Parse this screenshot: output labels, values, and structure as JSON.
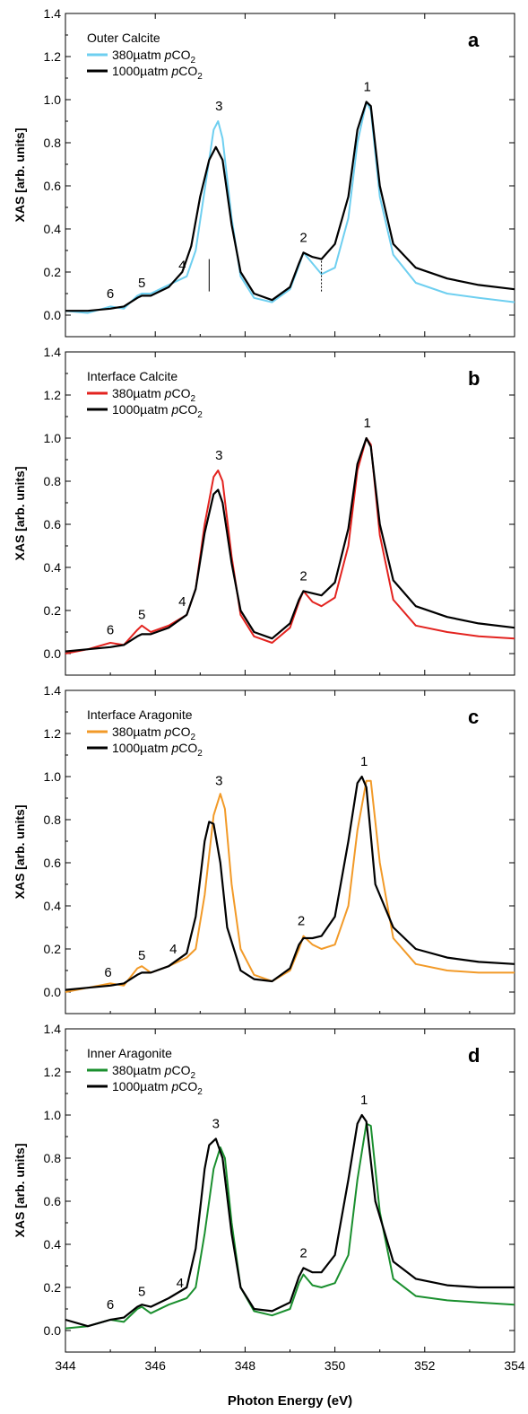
{
  "figure": {
    "xlabel": "Photon Energy (eV)",
    "ylabel": "XAS [arb. units]",
    "xticks": [
      "344",
      "346",
      "348",
      "350",
      "352",
      "354"
    ],
    "yticks": [
      "0.0",
      "0.2",
      "0.4",
      "0.6",
      "0.8",
      "1.0",
      "1.2",
      "1.4"
    ]
  },
  "chart_data": [
    {
      "type": "line",
      "panel_letter": "a",
      "legend_title": "Outer Calcite",
      "legend_placement": "top-left",
      "xlabel": "",
      "ylabel": "XAS [arb. units]",
      "xlim": [
        344,
        354
      ],
      "ylim": [
        -0.1,
        1.4
      ],
      "grid": false,
      "series": [
        {
          "name": "380µatm pCO2",
          "color": "#6ecff0",
          "x": [
            344,
            344.5,
            345,
            345.3,
            345.6,
            345.7,
            345.9,
            346.3,
            346.7,
            346.9,
            347.1,
            347.3,
            347.4,
            347.5,
            347.7,
            347.9,
            348.2,
            348.6,
            349,
            349.2,
            349.3,
            349.5,
            349.7,
            350,
            350.3,
            350.5,
            350.7,
            350.8,
            351,
            351.3,
            351.8,
            352.5,
            353.2,
            354
          ],
          "y": [
            0.02,
            0.01,
            0.04,
            0.03,
            0.09,
            0.1,
            0.1,
            0.14,
            0.18,
            0.3,
            0.58,
            0.86,
            0.9,
            0.82,
            0.45,
            0.18,
            0.08,
            0.06,
            0.12,
            0.23,
            0.29,
            0.24,
            0.19,
            0.22,
            0.45,
            0.8,
            0.99,
            0.95,
            0.55,
            0.28,
            0.15,
            0.1,
            0.08,
            0.06
          ]
        },
        {
          "name": "1000µatm pCO2",
          "color": "#000000",
          "x": [
            344,
            344.5,
            345,
            345.3,
            345.6,
            345.7,
            345.9,
            346.3,
            346.6,
            346.8,
            347,
            347.2,
            347.35,
            347.5,
            347.7,
            347.9,
            348.2,
            348.6,
            349,
            349.2,
            349.3,
            349.5,
            349.7,
            350,
            350.3,
            350.5,
            350.7,
            350.8,
            351,
            351.3,
            351.8,
            352.5,
            353.2,
            354
          ],
          "y": [
            0.02,
            0.02,
            0.03,
            0.04,
            0.08,
            0.09,
            0.09,
            0.13,
            0.2,
            0.32,
            0.55,
            0.72,
            0.78,
            0.72,
            0.42,
            0.2,
            0.1,
            0.07,
            0.13,
            0.24,
            0.29,
            0.27,
            0.26,
            0.33,
            0.55,
            0.86,
            0.99,
            0.97,
            0.6,
            0.33,
            0.22,
            0.17,
            0.14,
            0.12
          ]
        }
      ],
      "peak_labels": [
        {
          "label": "1",
          "x": 350.72,
          "y": 1.04
        },
        {
          "label": "2",
          "x": 349.3,
          "y": 0.34
        },
        {
          "label": "3",
          "x": 347.42,
          "y": 0.95
        },
        {
          "label": "4",
          "x": 346.6,
          "y": 0.21
        },
        {
          "label": "5",
          "x": 345.7,
          "y": 0.13
        },
        {
          "label": "6",
          "x": 345,
          "y": 0.08
        }
      ],
      "markers": [
        {
          "type": "solid",
          "x": 347.2,
          "y": [
            0.11,
            0.26
          ]
        },
        {
          "type": "dotted",
          "x": 349.7,
          "y": [
            0.11,
            0.26
          ]
        }
      ]
    },
    {
      "type": "line",
      "panel_letter": "b",
      "legend_title": "Interface Calcite",
      "legend_placement": "top-left",
      "xlabel": "",
      "ylabel": "XAS [arb. units]",
      "xlim": [
        344,
        354
      ],
      "ylim": [
        -0.1,
        1.4
      ],
      "grid": false,
      "series": [
        {
          "name": "380µatm pCO2",
          "color": "#e3231f",
          "x": [
            344,
            344.5,
            345,
            345.3,
            345.6,
            345.7,
            345.9,
            346.3,
            346.7,
            346.9,
            347.1,
            347.3,
            347.4,
            347.5,
            347.7,
            347.9,
            348.2,
            348.6,
            349,
            349.2,
            349.3,
            349.5,
            349.7,
            350,
            350.3,
            350.5,
            350.7,
            350.8,
            351,
            351.3,
            351.8,
            352.5,
            353.2,
            354
          ],
          "y": [
            0.0,
            0.02,
            0.05,
            0.04,
            0.11,
            0.13,
            0.1,
            0.13,
            0.18,
            0.3,
            0.6,
            0.82,
            0.85,
            0.8,
            0.45,
            0.18,
            0.08,
            0.05,
            0.12,
            0.24,
            0.29,
            0.24,
            0.22,
            0.26,
            0.5,
            0.85,
            1.0,
            0.97,
            0.55,
            0.25,
            0.13,
            0.1,
            0.08,
            0.07
          ]
        },
        {
          "name": "1000µatm pCO2",
          "color": "#000000",
          "x": [
            344,
            344.5,
            345,
            345.3,
            345.6,
            345.7,
            345.9,
            346.3,
            346.7,
            346.9,
            347.1,
            347.3,
            347.4,
            347.5,
            347.7,
            347.9,
            348.2,
            348.6,
            349,
            349.2,
            349.3,
            349.5,
            349.7,
            350,
            350.3,
            350.5,
            350.7,
            350.8,
            351,
            351.3,
            351.8,
            352.5,
            353.2,
            354
          ],
          "y": [
            0.01,
            0.02,
            0.03,
            0.04,
            0.08,
            0.09,
            0.09,
            0.12,
            0.18,
            0.3,
            0.56,
            0.74,
            0.76,
            0.7,
            0.42,
            0.2,
            0.1,
            0.07,
            0.14,
            0.25,
            0.29,
            0.28,
            0.27,
            0.33,
            0.58,
            0.88,
            1.0,
            0.96,
            0.6,
            0.34,
            0.22,
            0.17,
            0.14,
            0.12
          ]
        }
      ],
      "peak_labels": [
        {
          "label": "1",
          "x": 350.72,
          "y": 1.05
        },
        {
          "label": "2",
          "x": 349.3,
          "y": 0.34
        },
        {
          "label": "3",
          "x": 347.42,
          "y": 0.9
        },
        {
          "label": "4",
          "x": 346.6,
          "y": 0.22
        },
        {
          "label": "5",
          "x": 345.7,
          "y": 0.16
        },
        {
          "label": "6",
          "x": 345,
          "y": 0.09
        }
      ],
      "markers": []
    },
    {
      "type": "line",
      "panel_letter": "c",
      "legend_title": "Interface Aragonite",
      "legend_placement": "top-left",
      "xlabel": "",
      "ylabel": "XAS [arb. units]",
      "xlim": [
        344,
        354
      ],
      "ylim": [
        -0.1,
        1.4
      ],
      "grid": false,
      "series": [
        {
          "name": "380µatm pCO2",
          "color": "#f29a28",
          "x": [
            344,
            344.5,
            345,
            345.3,
            345.6,
            345.7,
            345.9,
            346.3,
            346.7,
            346.9,
            347.1,
            347.3,
            347.45,
            347.55,
            347.7,
            347.9,
            348.2,
            348.6,
            349,
            349.2,
            349.3,
            349.5,
            349.7,
            350,
            350.3,
            350.5,
            350.7,
            350.8,
            351,
            351.3,
            351.8,
            352.5,
            353.2,
            354
          ],
          "y": [
            0.0,
            0.02,
            0.04,
            0.03,
            0.11,
            0.12,
            0.09,
            0.12,
            0.16,
            0.2,
            0.45,
            0.82,
            0.92,
            0.85,
            0.5,
            0.2,
            0.08,
            0.05,
            0.1,
            0.2,
            0.26,
            0.22,
            0.2,
            0.22,
            0.4,
            0.75,
            0.98,
            0.98,
            0.6,
            0.25,
            0.13,
            0.1,
            0.09,
            0.09
          ]
        },
        {
          "name": "1000µatm pCO2",
          "color": "#000000",
          "x": [
            344,
            344.5,
            345,
            345.3,
            345.6,
            345.7,
            345.9,
            346.3,
            346.7,
            346.9,
            347.1,
            347.2,
            347.3,
            347.45,
            347.6,
            347.9,
            348.2,
            348.6,
            349,
            349.2,
            349.3,
            349.5,
            349.7,
            350,
            350.3,
            350.5,
            350.6,
            350.7,
            350.9,
            351.3,
            351.8,
            352.5,
            353.2,
            354
          ],
          "y": [
            0.01,
            0.02,
            0.03,
            0.04,
            0.08,
            0.09,
            0.09,
            0.12,
            0.18,
            0.35,
            0.7,
            0.79,
            0.78,
            0.6,
            0.3,
            0.1,
            0.06,
            0.05,
            0.11,
            0.22,
            0.25,
            0.25,
            0.26,
            0.35,
            0.7,
            0.97,
            1.0,
            0.95,
            0.5,
            0.3,
            0.2,
            0.16,
            0.14,
            0.13
          ]
        }
      ],
      "peak_labels": [
        {
          "label": "1",
          "x": 350.65,
          "y": 1.05
        },
        {
          "label": "2",
          "x": 349.25,
          "y": 0.31
        },
        {
          "label": "3",
          "x": 347.42,
          "y": 0.96
        },
        {
          "label": "4",
          "x": 346.4,
          "y": 0.18
        },
        {
          "label": "5",
          "x": 345.7,
          "y": 0.15
        },
        {
          "label": "6",
          "x": 344.95,
          "y": 0.07
        }
      ],
      "markers": []
    },
    {
      "type": "line",
      "panel_letter": "d",
      "legend_title": "Inner Aragonite",
      "legend_placement": "top-left",
      "xlabel": "Photon Energy (eV)",
      "ylabel": "XAS [arb. units]",
      "xlim": [
        344,
        354
      ],
      "ylim": [
        -0.1,
        1.4
      ],
      "grid": false,
      "series": [
        {
          "name": "380µatm pCO2",
          "color": "#1a8f2e",
          "x": [
            344,
            344.5,
            345,
            345.3,
            345.6,
            345.7,
            345.9,
            346.3,
            346.7,
            346.9,
            347.1,
            347.3,
            347.45,
            347.55,
            347.7,
            347.9,
            348.2,
            348.6,
            349,
            349.2,
            349.3,
            349.5,
            349.7,
            350,
            350.3,
            350.5,
            350.7,
            350.8,
            351,
            351.3,
            351.8,
            352.5,
            353.2,
            354
          ],
          "y": [
            0.01,
            0.02,
            0.05,
            0.04,
            0.1,
            0.11,
            0.08,
            0.12,
            0.15,
            0.2,
            0.45,
            0.75,
            0.85,
            0.8,
            0.5,
            0.2,
            0.09,
            0.07,
            0.1,
            0.22,
            0.26,
            0.21,
            0.2,
            0.22,
            0.35,
            0.7,
            0.96,
            0.95,
            0.55,
            0.24,
            0.16,
            0.14,
            0.13,
            0.12
          ]
        },
        {
          "name": "1000µatm pCO2",
          "color": "#000000",
          "x": [
            344,
            344.5,
            345,
            345.3,
            345.6,
            345.7,
            345.9,
            346.3,
            346.7,
            346.9,
            347.1,
            347.2,
            347.35,
            347.5,
            347.7,
            347.9,
            348.2,
            348.6,
            349,
            349.2,
            349.3,
            349.5,
            349.7,
            350,
            350.3,
            350.5,
            350.6,
            350.7,
            350.9,
            351.3,
            351.8,
            352.5,
            353.2,
            354
          ],
          "y": [
            0.05,
            0.02,
            0.05,
            0.06,
            0.11,
            0.12,
            0.11,
            0.15,
            0.2,
            0.38,
            0.75,
            0.86,
            0.89,
            0.8,
            0.45,
            0.2,
            0.1,
            0.09,
            0.13,
            0.25,
            0.29,
            0.27,
            0.27,
            0.35,
            0.7,
            0.96,
            1.0,
            0.97,
            0.6,
            0.32,
            0.24,
            0.21,
            0.2,
            0.2
          ]
        }
      ],
      "peak_labels": [
        {
          "label": "1",
          "x": 350.65,
          "y": 1.05
        },
        {
          "label": "2",
          "x": 349.3,
          "y": 0.34
        },
        {
          "label": "3",
          "x": 347.35,
          "y": 0.94
        },
        {
          "label": "4",
          "x": 346.55,
          "y": 0.2
        },
        {
          "label": "5",
          "x": 345.7,
          "y": 0.16
        },
        {
          "label": "6",
          "x": 345,
          "y": 0.1
        }
      ],
      "markers": []
    }
  ]
}
